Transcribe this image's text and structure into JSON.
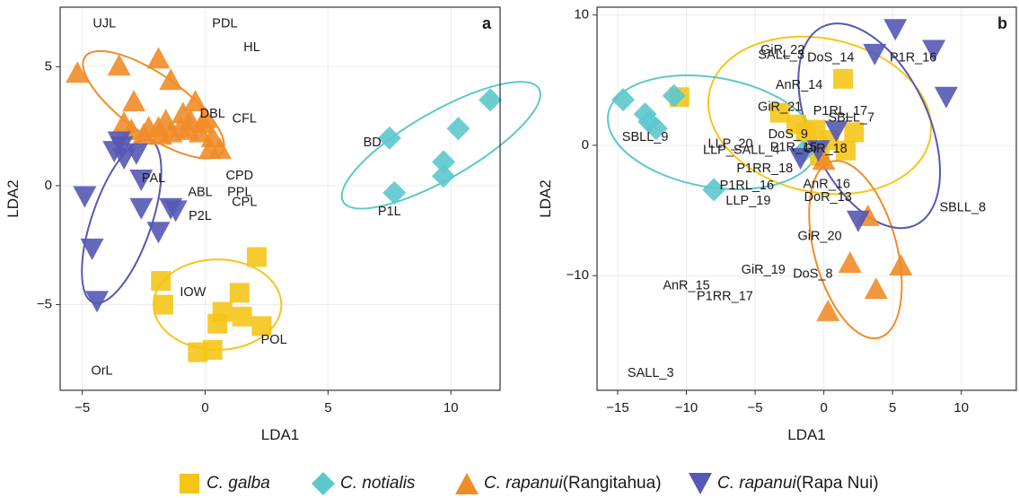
{
  "chart_data": [
    {
      "type": "scatter",
      "panel_label": "a",
      "xlabel": "LDA1",
      "ylabel": "LDA2",
      "xlim": [
        -5.9,
        12.0
      ],
      "ylim": [
        -8.6,
        7.5
      ],
      "xticks": [
        -5,
        0,
        5,
        10
      ],
      "yticks": [
        -5,
        0,
        5
      ],
      "grid": true,
      "series": [
        {
          "name": "C. galba",
          "marker": "square",
          "color": "#f5c518",
          "points": [
            [
              -1.8,
              -4.0
            ],
            [
              -1.7,
              -5.0
            ],
            [
              2.1,
              -3.0
            ],
            [
              1.4,
              -4.5
            ],
            [
              0.7,
              -5.3
            ],
            [
              1.5,
              -5.5
            ],
            [
              0.5,
              -5.8
            ],
            [
              2.3,
              -5.9
            ],
            [
              -0.3,
              -7.0
            ],
            [
              0.3,
              -6.9
            ]
          ],
          "ellipse": {
            "cx": 0.5,
            "cy": -5.0,
            "rx": 2.6,
            "ry": 1.9,
            "angle": 0
          }
        },
        {
          "name": "C. notialis",
          "marker": "diamond",
          "color": "#5cc8cc",
          "points": [
            [
              7.5,
              2.0
            ],
            [
              10.3,
              2.4
            ],
            [
              11.6,
              3.6
            ],
            [
              9.7,
              1.0
            ],
            [
              9.7,
              0.4
            ],
            [
              7.7,
              -0.3
            ]
          ],
          "ellipse": {
            "cx": 9.6,
            "cy": 1.7,
            "rx": 4.6,
            "ry": 1.4,
            "angle": 30
          }
        },
        {
          "name": "C. rapanui (Rangitahua)",
          "marker": "triangle-up",
          "color": "#f08c28",
          "points": [
            [
              -5.2,
              4.7
            ],
            [
              -3.5,
              5.0
            ],
            [
              -1.9,
              5.3
            ],
            [
              -1.4,
              4.4
            ],
            [
              -2.9,
              3.5
            ],
            [
              -3.3,
              2.6
            ],
            [
              -3.0,
              2.3
            ],
            [
              -2.5,
              2.1
            ],
            [
              -2.3,
              2.4
            ],
            [
              -1.9,
              2.4
            ],
            [
              -1.6,
              2.7
            ],
            [
              -1.4,
              2.2
            ],
            [
              -1.0,
              2.4
            ],
            [
              -0.9,
              3.0
            ],
            [
              -0.6,
              2.7
            ],
            [
              -0.4,
              3.5
            ],
            [
              -0.7,
              2.3
            ],
            [
              -0.2,
              2.2
            ],
            [
              0.3,
              2.0
            ],
            [
              0.2,
              1.5
            ],
            [
              0.6,
              1.5
            ],
            [
              -0.1,
              2.6
            ],
            [
              -1.8,
              2.1
            ],
            [
              0.0,
              2.8
            ]
          ],
          "ellipse": {
            "cx": -2.1,
            "cy": 3.4,
            "rx": 3.4,
            "ry": 1.25,
            "angle": -35
          }
        },
        {
          "name": "C. rapanui (Rapa Nui)",
          "marker": "triangle-down",
          "color": "#5558b4",
          "points": [
            [
              -3.5,
              1.9
            ],
            [
              -3.4,
              1.7
            ],
            [
              -3.3,
              1.2
            ],
            [
              -3.7,
              1.5
            ],
            [
              -2.8,
              1.4
            ],
            [
              -2.6,
              0.3
            ],
            [
              -4.9,
              -0.4
            ],
            [
              -2.6,
              -0.9
            ],
            [
              -1.4,
              -0.9
            ],
            [
              -1.2,
              -1.0
            ],
            [
              -1.9,
              -1.9
            ],
            [
              -4.6,
              -2.6
            ],
            [
              -4.4,
              -4.8
            ]
          ],
          "ellipse": {
            "cx": -3.4,
            "cy": -1.5,
            "rx": 3.5,
            "ry": 1.25,
            "angle": 71
          }
        }
      ],
      "annotations": [
        {
          "text": "UJL",
          "x": -4.1,
          "y": 6.8
        },
        {
          "text": "PDL",
          "x": 0.8,
          "y": 6.8
        },
        {
          "text": "HL",
          "x": 1.9,
          "y": 5.8
        },
        {
          "text": "DBL",
          "x": 0.3,
          "y": 3.0
        },
        {
          "text": "CFL",
          "x": 1.6,
          "y": 2.8
        },
        {
          "text": "BD",
          "x": 6.8,
          "y": 1.8
        },
        {
          "text": "PAL",
          "x": -2.1,
          "y": 0.3
        },
        {
          "text": "CPD",
          "x": 1.4,
          "y": 0.4
        },
        {
          "text": "ABL",
          "x": -0.2,
          "y": -0.3
        },
        {
          "text": "PPL",
          "x": 1.4,
          "y": -0.3
        },
        {
          "text": "CPL",
          "x": 1.6,
          "y": -0.7
        },
        {
          "text": "P2L",
          "x": -0.2,
          "y": -1.3
        },
        {
          "text": "P1L",
          "x": 7.5,
          "y": -1.1
        },
        {
          "text": "IOW",
          "x": -0.5,
          "y": -4.5
        },
        {
          "text": "POL",
          "x": 2.8,
          "y": -6.5
        },
        {
          "text": "OrL",
          "x": -4.2,
          "y": -7.8
        }
      ]
    },
    {
      "type": "scatter",
      "panel_label": "b",
      "xlabel": "LDA1",
      "ylabel": "LDA2",
      "xlim": [
        -16.5,
        14.0
      ],
      "ylim": [
        -18.8,
        10.6
      ],
      "xticks": [
        -15,
        -10,
        -5,
        0,
        5,
        10
      ],
      "yticks": [
        -10,
        0,
        10
      ],
      "grid": true,
      "series": [
        {
          "name": "C. galba",
          "marker": "square",
          "color": "#f5c518",
          "points": [
            [
              -10.5,
              3.7
            ],
            [
              1.4,
              5.1
            ],
            [
              -3.2,
              2.5
            ],
            [
              -1.3,
              1.0
            ],
            [
              -2.0,
              1.6
            ],
            [
              -0.6,
              1.2
            ],
            [
              0.4,
              0.4
            ],
            [
              -0.3,
              -0.8
            ],
            [
              1.6,
              -0.4
            ],
            [
              2.2,
              1.0
            ]
          ],
          "ellipse": {
            "cx": -0.3,
            "cy": 2.3,
            "rx": 8.2,
            "ry": 5.9,
            "angle": -12
          }
        },
        {
          "name": "C. notialis",
          "marker": "diamond",
          "color": "#5cc8cc",
          "points": [
            [
              -14.6,
              3.5
            ],
            [
              -13.0,
              2.4
            ],
            [
              -12.7,
              1.8
            ],
            [
              -10.9,
              3.8
            ],
            [
              -12.2,
              1.3
            ],
            [
              -8.0,
              -3.4
            ],
            [
              -1.5,
              -0.5
            ]
          ],
          "ellipse": {
            "cx": -8.1,
            "cy": 1.0,
            "rx": 7.7,
            "ry": 4.2,
            "angle": -10
          }
        },
        {
          "name": "C. rapanui (Rangitahua)",
          "marker": "triangle-up",
          "color": "#f08c28",
          "points": [
            [
              1.9,
              -9.1
            ],
            [
              5.6,
              -9.3
            ],
            [
              3.8,
              -11.1
            ],
            [
              0.3,
              -12.8
            ],
            [
              3.2,
              -5.5
            ],
            [
              0.0,
              -1.2
            ]
          ],
          "ellipse": {
            "cx": 2.3,
            "cy": -8.0,
            "rx": 3.0,
            "ry": 7.0,
            "angle": 15
          }
        },
        {
          "name": "C. rapanui (Rapa Nui)",
          "marker": "triangle-down",
          "color": "#5558b4",
          "points": [
            [
              5.2,
              9.0
            ],
            [
              8.0,
              7.4
            ],
            [
              3.7,
              7.1
            ],
            [
              8.9,
              3.8
            ],
            [
              0.9,
              1.2
            ],
            [
              -0.4,
              -0.3
            ],
            [
              -1.7,
              -0.9
            ],
            [
              2.5,
              -5.7
            ]
          ],
          "ellipse": {
            "cx": 3.3,
            "cy": 1.5,
            "rx": 4.3,
            "ry": 8.4,
            "angle": 25
          }
        }
      ],
      "annotations": [
        {
          "text": "GiR_22",
          "x": -3.0,
          "y": 7.3
        },
        {
          "text": "SALL_3",
          "x": -3.1,
          "y": 6.9
        },
        {
          "text": "DoS_14",
          "x": 0.5,
          "y": 6.7
        },
        {
          "text": "P1R_16",
          "x": 6.5,
          "y": 6.7
        },
        {
          "text": "AnR_14",
          "x": -1.8,
          "y": 4.6
        },
        {
          "text": "GiR_21",
          "x": -3.2,
          "y": 2.9
        },
        {
          "text": "P1RL_17",
          "x": 1.2,
          "y": 2.6
        },
        {
          "text": "SBLL_7",
          "x": 2.0,
          "y": 2.1
        },
        {
          "text": "SBLL_9",
          "x": -13.0,
          "y": 0.6
        },
        {
          "text": "DoS_9",
          "x": -2.6,
          "y": 0.8
        },
        {
          "text": "LLP_20",
          "x": -6.8,
          "y": 0.1
        },
        {
          "text": "LLP_SALL_4",
          "x": -6.0,
          "y": -0.4
        },
        {
          "text": "P1R_15",
          "x": -2.2,
          "y": -0.2
        },
        {
          "text": "GiR_18",
          "x": 0.1,
          "y": -0.3
        },
        {
          "text": "P1RR_18",
          "x": -4.3,
          "y": -1.8
        },
        {
          "text": "P1RL_16",
          "x": -5.6,
          "y": -3.1
        },
        {
          "text": "AnR_16",
          "x": 0.2,
          "y": -3.0
        },
        {
          "text": "DoR_13",
          "x": 0.3,
          "y": -4.0
        },
        {
          "text": "LLP_19",
          "x": -5.5,
          "y": -4.3
        },
        {
          "text": "SBLL_8",
          "x": 10.1,
          "y": -4.8
        },
        {
          "text": "GiR_20",
          "x": -0.3,
          "y": -7.0
        },
        {
          "text": "GiR_19",
          "x": -4.4,
          "y": -9.6
        },
        {
          "text": "DoS_8",
          "x": -0.8,
          "y": -9.9
        },
        {
          "text": "AnR_15",
          "x": -10.0,
          "y": -10.8
        },
        {
          "text": "P1RR_17",
          "x": -7.2,
          "y": -11.6
        },
        {
          "text": "SALL_3",
          "x": -12.6,
          "y": -17.5
        }
      ]
    }
  ],
  "legend": [
    {
      "species": "C. galba",
      "suffix": "",
      "marker": "square",
      "color": "#f5c518"
    },
    {
      "species": "C. notialis",
      "suffix": "",
      "marker": "diamond",
      "color": "#5cc8cc"
    },
    {
      "species": "C. rapanui",
      "suffix": " (Rangitahua)",
      "marker": "triangle-up",
      "color": "#f08c28"
    },
    {
      "species": "C. rapanui",
      "suffix": " (Rapa Nui)",
      "marker": "triangle-down",
      "color": "#5558b4"
    }
  ]
}
